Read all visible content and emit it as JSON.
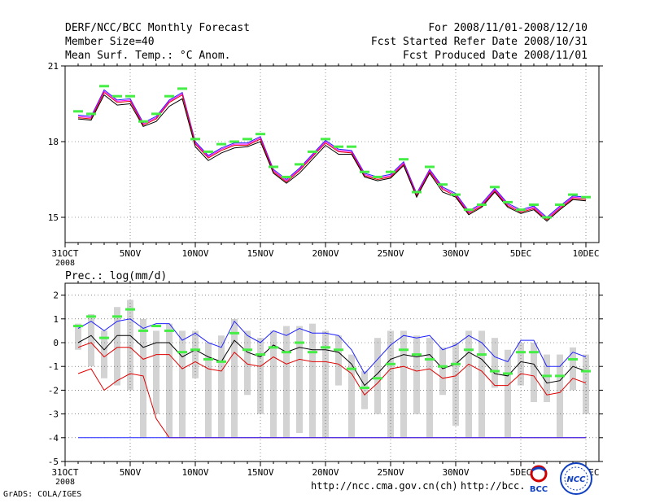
{
  "header": {
    "title": "DERF/NCC/BCC Monthly Forecast",
    "member_size": "Member Size=40",
    "variable": "Mean Surf. Temp.: °C Anom.",
    "period": "For 2008/11/01-2008/12/10",
    "started": "Fcst Started Refer Date 2008/10/31",
    "produced": "Fcst Produced Date 2008/11/01"
  },
  "footer": {
    "grads": "GrADS: COLA/IGES",
    "url1": "http://ncc.cma.gov.cn(ch)",
    "url2": "http://bcc."
  },
  "logos": {
    "bcc": "BCC",
    "ncc": "NCC"
  },
  "chart_data": [
    {
      "type": "line",
      "title": "Mean Surf. Temp.: °C Anom.",
      "xlabel": "",
      "ylabel": "",
      "ylim": [
        14,
        21
      ],
      "yticks": [
        15,
        18,
        21
      ],
      "x_tick_labels": [
        "31OCT",
        "5NOV",
        "10NOV",
        "15NOV",
        "20NOV",
        "25NOV",
        "30NOV",
        "5DEC",
        "10DEC"
      ],
      "x_tick_days": [
        0,
        5,
        10,
        15,
        20,
        25,
        30,
        35,
        40
      ],
      "x_year_label": "2008",
      "days": [
        1,
        2,
        3,
        4,
        5,
        6,
        7,
        8,
        9,
        10,
        11,
        12,
        13,
        14,
        15,
        16,
        17,
        18,
        19,
        20,
        21,
        22,
        23,
        24,
        25,
        26,
        27,
        28,
        29,
        30,
        31,
        32,
        33,
        34,
        35,
        36,
        37,
        38,
        39,
        40
      ],
      "green_marks": [
        19.2,
        19.1,
        20.2,
        19.8,
        19.8,
        18.8,
        19.1,
        19.8,
        20.1,
        18.1,
        17.6,
        17.9,
        18.0,
        18.1,
        18.3,
        17.0,
        16.6,
        17.1,
        17.6,
        18.1,
        17.8,
        17.8,
        16.8,
        16.6,
        16.8,
        17.3,
        16.0,
        17.0,
        16.3,
        15.9,
        15.3,
        15.5,
        16.2,
        15.6,
        15.3,
        15.5,
        15.0,
        15.5,
        15.9,
        15.8
      ],
      "series": [
        {
          "name": "blue",
          "color": "#2020ff",
          "values": [
            19.05,
            19.0,
            20.05,
            19.65,
            19.7,
            18.75,
            19.0,
            19.65,
            19.95,
            18.0,
            17.45,
            17.75,
            17.95,
            17.95,
            18.2,
            16.9,
            16.5,
            16.95,
            17.5,
            18.05,
            17.7,
            17.65,
            16.75,
            16.6,
            16.7,
            17.2,
            15.95,
            16.9,
            16.2,
            15.95,
            15.25,
            15.55,
            16.15,
            15.55,
            15.3,
            15.45,
            15.0,
            15.45,
            15.85,
            15.8
          ]
        },
        {
          "name": "magenta",
          "color": "#ff00ff",
          "values": [
            19.0,
            18.95,
            20.0,
            19.6,
            19.65,
            18.7,
            18.95,
            19.6,
            19.9,
            17.95,
            17.4,
            17.7,
            17.9,
            17.9,
            18.15,
            16.85,
            16.45,
            16.9,
            17.45,
            18.0,
            17.65,
            17.6,
            16.7,
            16.55,
            16.65,
            17.15,
            15.9,
            16.85,
            16.15,
            15.9,
            15.2,
            15.5,
            16.1,
            15.5,
            15.25,
            15.4,
            14.95,
            15.4,
            15.8,
            15.75
          ]
        },
        {
          "name": "red",
          "color": "#e00000",
          "values": [
            18.95,
            18.9,
            19.95,
            19.55,
            19.6,
            18.65,
            18.9,
            19.55,
            19.85,
            17.9,
            17.35,
            17.65,
            17.85,
            17.85,
            18.1,
            16.8,
            16.4,
            16.85,
            17.4,
            17.95,
            17.6,
            17.55,
            16.65,
            16.5,
            16.6,
            17.1,
            15.85,
            16.8,
            16.1,
            15.85,
            15.15,
            15.45,
            16.05,
            15.45,
            15.2,
            15.35,
            14.9,
            15.35,
            15.75,
            15.7
          ]
        },
        {
          "name": "black",
          "color": "#000000",
          "values": [
            18.9,
            18.85,
            19.85,
            19.45,
            19.5,
            18.6,
            18.8,
            19.4,
            19.7,
            17.8,
            17.25,
            17.55,
            17.75,
            17.8,
            18.0,
            16.75,
            16.35,
            16.75,
            17.3,
            17.85,
            17.5,
            17.5,
            16.6,
            16.45,
            16.55,
            17.05,
            15.8,
            16.75,
            16.0,
            15.8,
            15.1,
            15.4,
            16.0,
            15.4,
            15.15,
            15.3,
            14.85,
            15.3,
            15.7,
            15.65
          ]
        }
      ]
    },
    {
      "type": "line",
      "title": "Prec.: log(mm/d)",
      "xlabel": "",
      "ylabel": "",
      "ylim": [
        -5,
        2.5
      ],
      "yticks": [
        -5,
        -4,
        -3,
        -2,
        -1,
        0,
        1,
        2
      ],
      "x_tick_labels": [
        "31OCT",
        "5NOV",
        "10NOV",
        "15NOV",
        "20NOV",
        "25NOV",
        "30NOV",
        "5DEC",
        "10DEC"
      ],
      "x_tick_days": [
        0,
        5,
        10,
        15,
        20,
        25,
        30,
        35,
        40
      ],
      "x_year_label": "2008",
      "days": [
        1,
        2,
        3,
        4,
        5,
        6,
        7,
        8,
        9,
        10,
        11,
        12,
        13,
        14,
        15,
        16,
        17,
        18,
        19,
        20,
        21,
        22,
        23,
        24,
        25,
        26,
        27,
        28,
        29,
        30,
        31,
        32,
        33,
        34,
        35,
        36,
        37,
        38,
        39,
        40
      ],
      "gray_bars": {
        "low": [
          -0.3,
          -1.0,
          -1.5,
          -1.8,
          -2.0,
          -4.0,
          -3.0,
          -4.0,
          -4.0,
          -1.5,
          -4.0,
          -4.0,
          -4.0,
          -2.2,
          -3.0,
          -4.0,
          -4.0,
          -3.8,
          -4.0,
          -4.0,
          -1.8,
          -4.0,
          -2.8,
          -3.0,
          -4.0,
          -4.0,
          -3.0,
          -4.0,
          -2.2,
          -3.5,
          -4.0,
          -4.0,
          -1.9,
          -4.0,
          -1.8,
          -2.5,
          -2.5,
          -4.0,
          -2.0,
          -3.0
        ],
        "high": [
          0.8,
          1.2,
          0.5,
          1.5,
          1.8,
          1.0,
          0.5,
          0.8,
          0.5,
          0.5,
          0.0,
          0.3,
          1.0,
          0.5,
          0.2,
          0.5,
          0.7,
          0.7,
          0.8,
          0.5,
          0.3,
          -0.5,
          -1.2,
          0.2,
          0.5,
          0.5,
          0.3,
          0.2,
          -0.2,
          0.0,
          0.5,
          0.5,
          0.2,
          -0.3,
          0.0,
          0.0,
          -0.5,
          -0.5,
          -0.2,
          -0.5
        ]
      },
      "green_marks": [
        0.7,
        1.1,
        0.2,
        1.1,
        1.4,
        0.5,
        0.7,
        0.5,
        -0.4,
        -0.3,
        -0.7,
        -0.8,
        0.4,
        -0.3,
        -0.5,
        -0.2,
        -0.4,
        0.0,
        -0.4,
        -0.2,
        -0.3,
        -1.1,
        -1.9,
        -1.5,
        -0.9,
        -0.3,
        -0.5,
        -0.7,
        -1.0,
        -0.9,
        -0.3,
        -0.5,
        -1.2,
        -1.3,
        -0.4,
        -0.4,
        -1.4,
        -1.4,
        -0.7,
        -1.2
      ],
      "series": [
        {
          "name": "blue",
          "color": "#2020ff",
          "values": [
            0.6,
            0.9,
            0.5,
            0.9,
            1.0,
            0.6,
            0.8,
            0.8,
            0.1,
            0.4,
            0.0,
            -0.2,
            0.9,
            0.3,
            0.0,
            0.5,
            0.3,
            0.6,
            0.4,
            0.4,
            0.3,
            -0.3,
            -1.3,
            -0.7,
            -0.1,
            0.3,
            0.2,
            0.3,
            -0.3,
            -0.1,
            0.3,
            0.0,
            -0.6,
            -0.8,
            0.1,
            0.1,
            -1.0,
            -1.0,
            -0.4,
            -0.6
          ]
        },
        {
          "name": "black",
          "color": "#000000",
          "values": [
            0.0,
            0.3,
            -0.3,
            0.3,
            0.3,
            -0.2,
            0.0,
            0.0,
            -0.6,
            -0.3,
            -0.6,
            -0.8,
            0.1,
            -0.4,
            -0.6,
            -0.1,
            -0.4,
            -0.2,
            -0.3,
            -0.3,
            -0.4,
            -0.9,
            -1.8,
            -1.3,
            -0.7,
            -0.5,
            -0.6,
            -0.5,
            -1.1,
            -0.9,
            -0.4,
            -0.7,
            -1.3,
            -1.4,
            -0.8,
            -0.9,
            -1.7,
            -1.6,
            -1.0,
            -1.2
          ]
        },
        {
          "name": "red",
          "color": "#e00000",
          "values": [
            -0.2,
            0.0,
            -0.6,
            -0.2,
            -0.2,
            -0.7,
            -0.5,
            -0.5,
            -1.1,
            -0.8,
            -1.1,
            -1.2,
            -0.4,
            -0.9,
            -1.0,
            -0.6,
            -0.9,
            -0.7,
            -0.8,
            -0.8,
            -0.9,
            -1.3,
            -2.2,
            -1.7,
            -1.1,
            -1.0,
            -1.2,
            -1.1,
            -1.5,
            -1.4,
            -0.9,
            -1.2,
            -1.8,
            -1.8,
            -1.3,
            -1.4,
            -2.2,
            -2.1,
            -1.5,
            -1.7
          ]
        },
        {
          "name": "red-low",
          "color": "#e00000",
          "values": [
            -1.3,
            -1.1,
            -2.0,
            -1.6,
            -1.3,
            -1.4,
            -3.2,
            -4.0,
            -4.0,
            -4.0,
            -4.0,
            -4.0,
            -4.0,
            -4.0,
            -4.0,
            -4.0,
            -4.0,
            -4.0,
            -4.0,
            -4.0,
            -4.0,
            -4.0,
            -4.0,
            -4.0,
            -4.0,
            -4.0,
            -4.0,
            -4.0,
            -4.0,
            -4.0,
            -4.0,
            -4.0,
            -4.0,
            -4.0,
            -4.0,
            -4.0,
            -4.0,
            -4.0,
            -4.0,
            -4.0
          ]
        },
        {
          "name": "blue-low",
          "color": "#2020ff",
          "values": [
            -4.0,
            -4.0,
            -4.0,
            -4.0,
            -4.0,
            -4.0,
            -4.0,
            -4.0,
            -4.0,
            -4.0,
            -4.0,
            -4.0,
            -4.0,
            -4.0,
            -4.0,
            -4.0,
            -4.0,
            -4.0,
            -4.0,
            -4.0,
            -4.0,
            -4.0,
            -4.0,
            -4.0,
            -4.0,
            -4.0,
            -4.0,
            -4.0,
            -4.0,
            -4.0,
            -4.0,
            -4.0,
            -4.0,
            -4.0,
            -4.0,
            -4.0,
            -4.0,
            -4.0,
            -4.0,
            -4.0
          ]
        }
      ]
    }
  ]
}
